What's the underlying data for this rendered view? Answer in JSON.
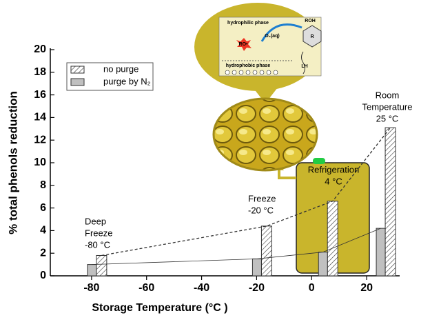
{
  "chart_data": {
    "type": "bar",
    "x_label": "Storage Temperature (°C )",
    "y_label": "% total phenols reduction",
    "x": [
      -80,
      -20,
      4,
      25
    ],
    "series": [
      {
        "name": "no purge",
        "color": "#ffffff",
        "hatch": true,
        "values": [
          1.8,
          4.4,
          6.6,
          13.1
        ],
        "trend": "dashed"
      },
      {
        "name": "purge by N₂",
        "color": "#c0c0c0",
        "hatch": false,
        "values": [
          1.0,
          1.5,
          2.1,
          4.2
        ],
        "trend": "solid"
      }
    ],
    "xlim": [
      -95,
      32
    ],
    "xticks": [
      -80,
      -60,
      -40,
      -20,
      0,
      20
    ],
    "ylim": [
      0,
      20
    ],
    "yticks": [
      0,
      2,
      4,
      6,
      8,
      10,
      12,
      14,
      16,
      18,
      20
    ],
    "legend": "top-left",
    "annotations": [
      {
        "lines": [
          "Deep",
          "Freeze",
          "-80 °C"
        ]
      },
      {
        "lines": [
          "Freeze",
          "-20 °C"
        ]
      },
      {
        "lines": [
          "Refrigeration",
          "4 °C"
        ]
      },
      {
        "lines": [
          "Room",
          "Temperature",
          "25 °C"
        ]
      }
    ]
  },
  "illustration": {
    "labels": [
      "hydrophilic phase",
      "hydrophobic phase",
      "ROH",
      "O₂(aq)",
      "RO•",
      "LH",
      "R"
    ]
  }
}
